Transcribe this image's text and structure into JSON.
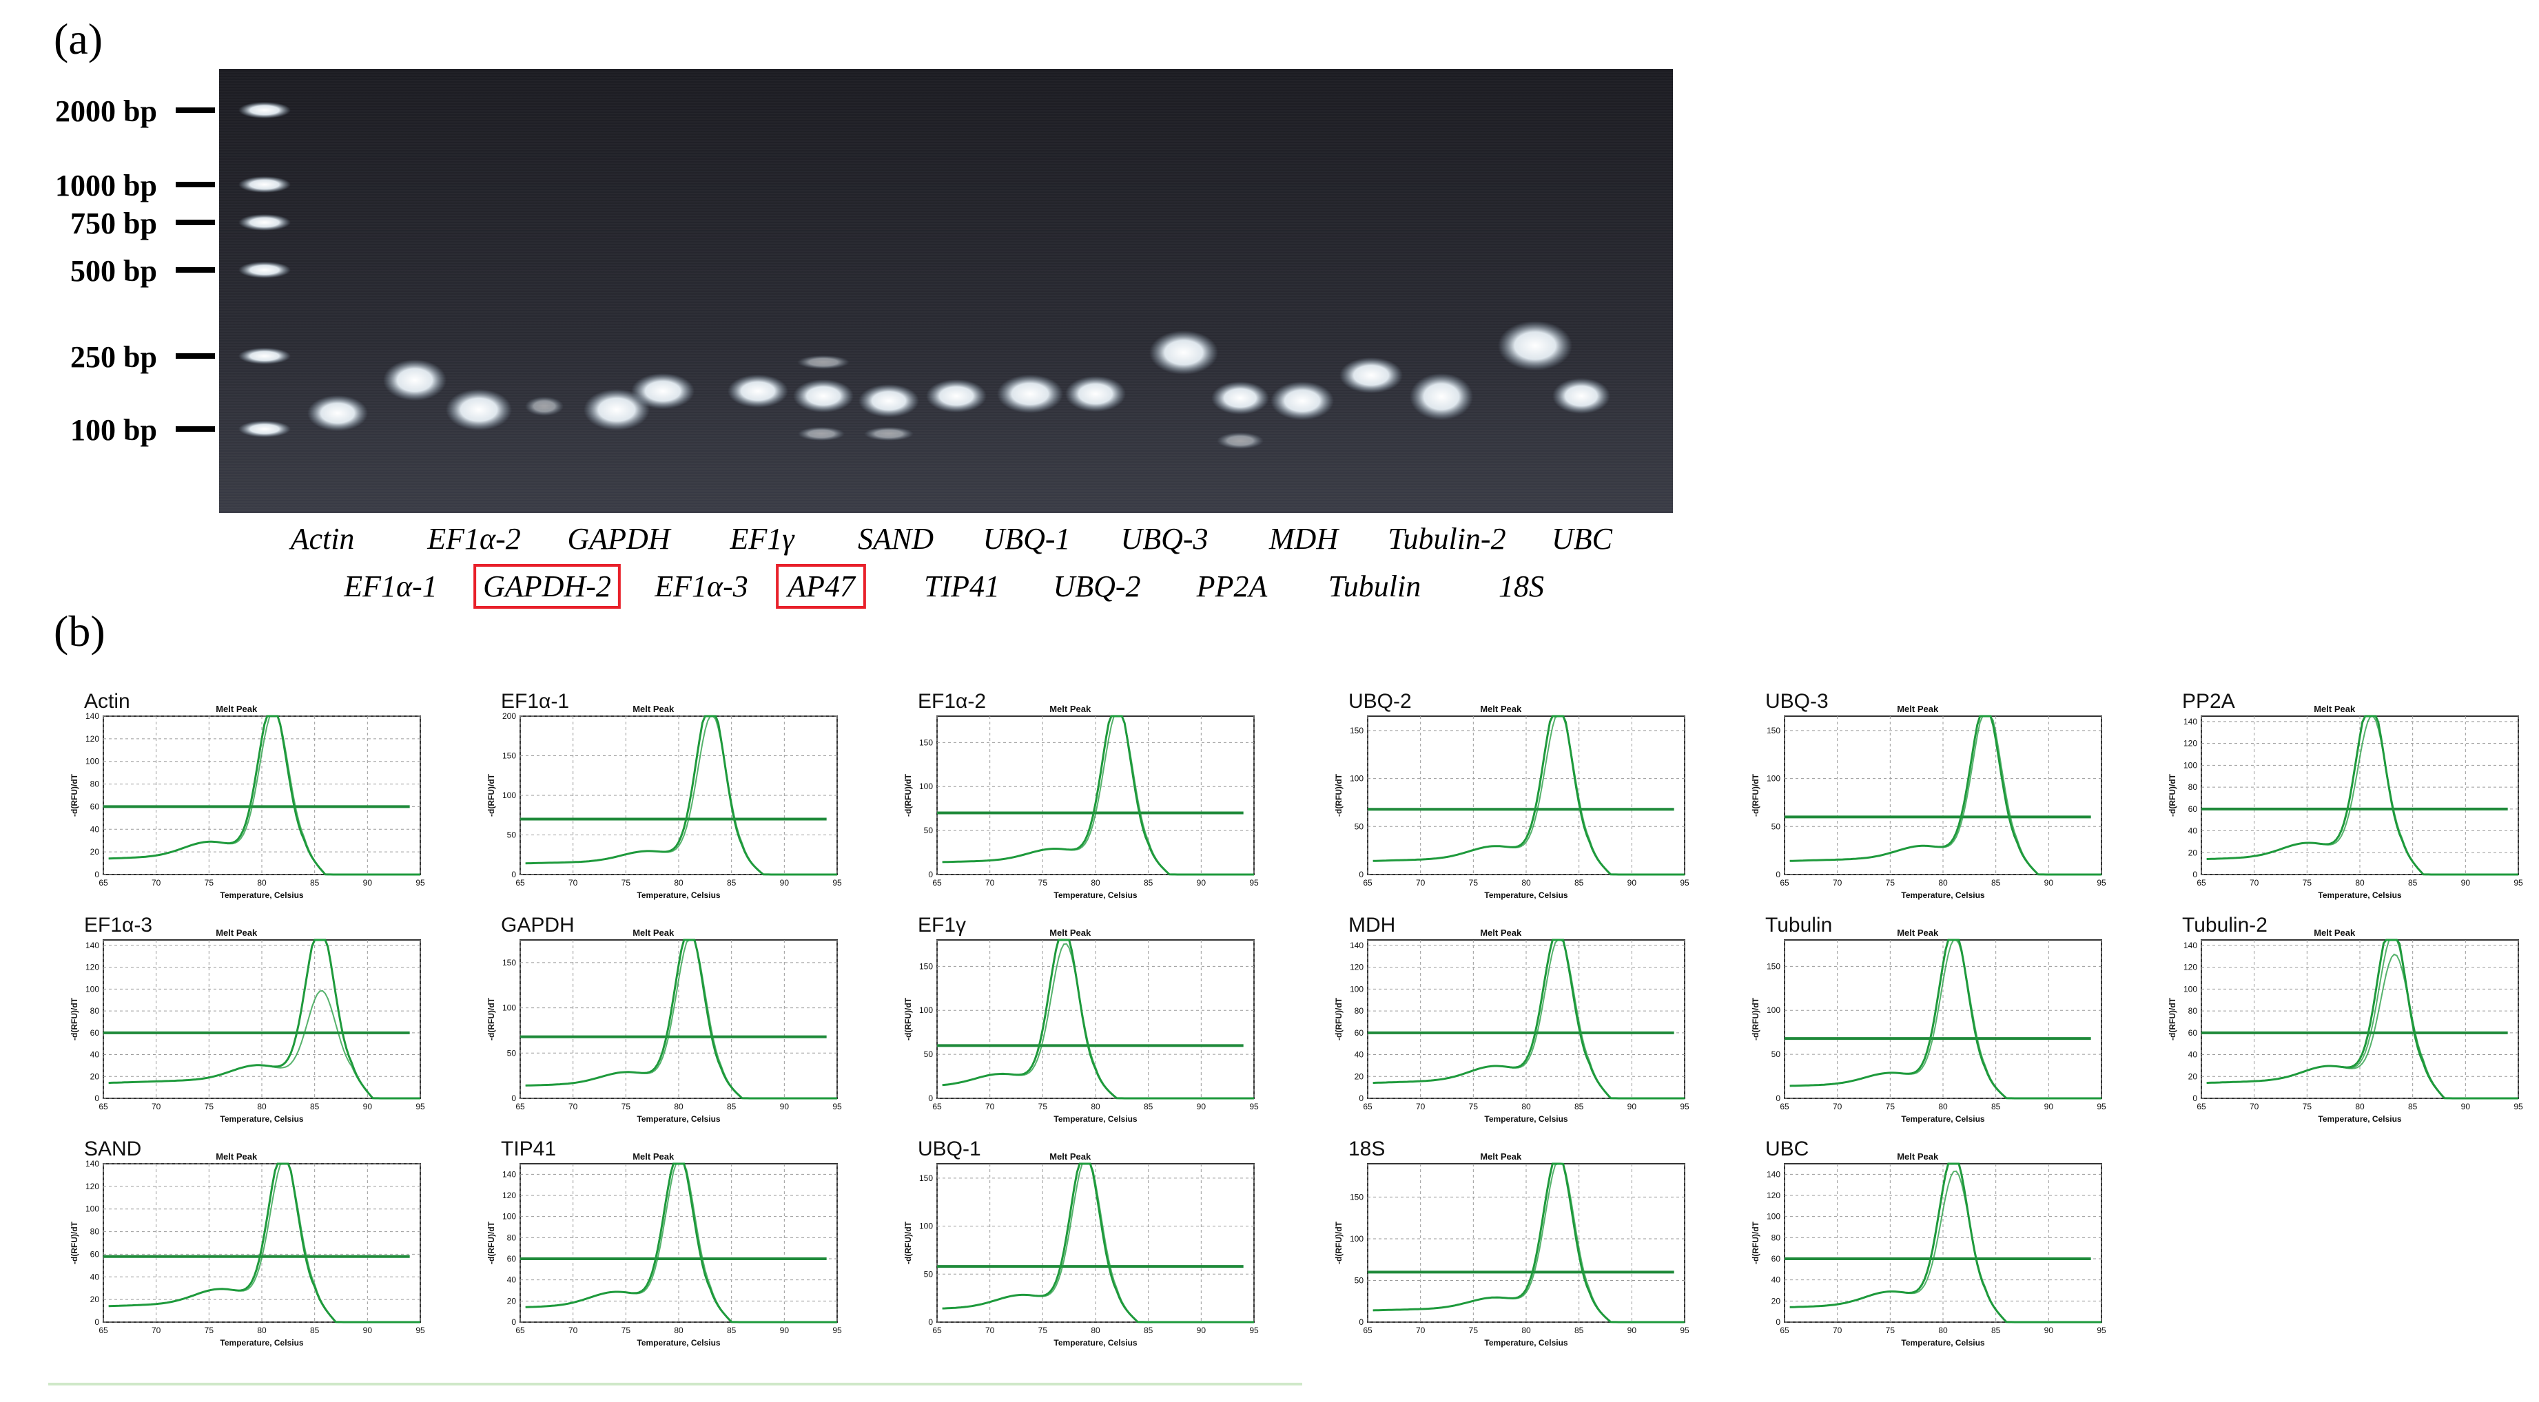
{
  "panel_a": {
    "label": "(a)",
    "ladder": [
      "2000 bp",
      "1000 bp",
      "750 bp",
      "500 bp",
      "250 bp",
      "100 bp"
    ],
    "lanes_row1": [
      "Actin",
      "EF1α-2",
      "GAPDH",
      "EF1γ",
      "SAND",
      "UBQ-1",
      "UBQ-3",
      "MDH",
      "Tubulin-2",
      "UBC"
    ],
    "lanes_row2": [
      "EF1α-1",
      "GAPDH-2",
      "EF1α-3",
      "AP47",
      "TIP41",
      "UBQ-2",
      "PP2A",
      "Tubulin",
      "18S"
    ],
    "highlight_color": "#e8202a"
  },
  "panel_b": {
    "label": "(b)",
    "plot_title": "Melt Peak",
    "xlabel": "Temperature, Celsius",
    "ylabel": "-d(RFU)/dT",
    "curve_color": "#1f9a3c",
    "threshold_color": "#1f8a3a"
  },
  "chart_data": [
    {
      "type": "line",
      "name": "Actin",
      "x_ticks": [
        65,
        70,
        75,
        80,
        85,
        90,
        95
      ],
      "y_ticks": [
        0,
        20,
        40,
        60,
        80,
        100,
        120,
        140
      ],
      "ylim": [
        0,
        140
      ],
      "peak_temp": 81,
      "peaks": [
        132,
        126
      ],
      "threshold": 60
    },
    {
      "type": "line",
      "name": "EF1α-1",
      "x_ticks": [
        65,
        70,
        75,
        80,
        85,
        90,
        95
      ],
      "y_ticks": [
        0,
        50,
        100,
        150,
        200
      ],
      "ylim": [
        0,
        200
      ],
      "peak_temp": 83,
      "peaks": [
        200,
        182
      ],
      "threshold": 70
    },
    {
      "type": "line",
      "name": "EF1α-2",
      "x_ticks": [
        65,
        70,
        75,
        80,
        85,
        90,
        95
      ],
      "y_ticks": [
        0,
        50,
        100,
        150
      ],
      "ylim": [
        0,
        180
      ],
      "peak_temp": 82,
      "peaks": [
        178,
        168
      ],
      "threshold": 70
    },
    {
      "type": "line",
      "name": "UBQ-2",
      "x_ticks": [
        65,
        70,
        75,
        80,
        85,
        90,
        95
      ],
      "y_ticks": [
        0,
        50,
        100,
        150
      ],
      "ylim": [
        0,
        165
      ],
      "peak_temp": 83,
      "peaks": [
        162,
        150
      ],
      "threshold": 68
    },
    {
      "type": "line",
      "name": "UBQ-3",
      "x_ticks": [
        65,
        70,
        75,
        80,
        85,
        90,
        95
      ],
      "y_ticks": [
        0,
        50,
        100,
        150
      ],
      "ylim": [
        0,
        165
      ],
      "peak_temp": 84,
      "peaks": [
        158,
        155
      ],
      "threshold": 60
    },
    {
      "type": "line",
      "name": "PP2A",
      "x_ticks": [
        65,
        70,
        75,
        80,
        85,
        90,
        95
      ],
      "y_ticks": [
        0,
        20,
        40,
        60,
        80,
        100,
        120,
        140
      ],
      "ylim": [
        0,
        145
      ],
      "peak_temp": 81,
      "peaks": [
        140,
        126
      ],
      "threshold": 60
    },
    {
      "type": "line",
      "name": "EF1α-3",
      "x_ticks": [
        65,
        70,
        75,
        80,
        85,
        90,
        95
      ],
      "y_ticks": [
        0,
        20,
        40,
        60,
        80,
        100,
        120,
        140
      ],
      "ylim": [
        0,
        145
      ],
      "peak_temp": 85.5,
      "peaks": [
        138,
        78
      ],
      "threshold": 60
    },
    {
      "type": "line",
      "name": "GAPDH",
      "x_ticks": [
        65,
        70,
        75,
        80,
        85,
        90,
        95
      ],
      "y_ticks": [
        0,
        50,
        100,
        150
      ],
      "ylim": [
        0,
        175
      ],
      "peak_temp": 81,
      "peaks": [
        168,
        160
      ],
      "threshold": 68
    },
    {
      "type": "line",
      "name": "EF1γ",
      "x_ticks": [
        65,
        70,
        75,
        80,
        85,
        90,
        95
      ],
      "y_ticks": [
        0,
        50,
        100,
        150
      ],
      "ylim": [
        0,
        180
      ],
      "peak_temp": 77,
      "peaks": [
        175,
        158
      ],
      "threshold": 60
    },
    {
      "type": "line",
      "name": "MDH",
      "x_ticks": [
        65,
        70,
        75,
        80,
        85,
        90,
        95
      ],
      "y_ticks": [
        0,
        20,
        40,
        60,
        80,
        100,
        120,
        140
      ],
      "ylim": [
        0,
        145
      ],
      "peak_temp": 83,
      "peaks": [
        134,
        128
      ],
      "threshold": 60
    },
    {
      "type": "line",
      "name": "Tubulin",
      "x_ticks": [
        65,
        70,
        75,
        80,
        85,
        90,
        95
      ],
      "y_ticks": [
        0,
        50,
        100,
        150
      ],
      "ylim": [
        0,
        180
      ],
      "peak_temp": 81,
      "peaks": [
        174,
        162
      ],
      "threshold": 68
    },
    {
      "type": "line",
      "name": "Tubulin-2",
      "x_ticks": [
        65,
        70,
        75,
        80,
        85,
        90,
        95
      ],
      "y_ticks": [
        0,
        20,
        40,
        60,
        80,
        100,
        120,
        140
      ],
      "ylim": [
        0,
        145
      ],
      "peak_temp": 83,
      "peaks": [
        142,
        130,
        112
      ],
      "threshold": 60
    },
    {
      "type": "line",
      "name": "SAND",
      "x_ticks": [
        65,
        70,
        75,
        80,
        85,
        90,
        95
      ],
      "y_ticks": [
        0,
        20,
        40,
        60,
        80,
        100,
        120,
        140
      ],
      "ylim": [
        0,
        140
      ],
      "peak_temp": 82,
      "peaks": [
        133,
        125
      ],
      "threshold": 58
    },
    {
      "type": "line",
      "name": "TIP41",
      "x_ticks": [
        65,
        70,
        75,
        80,
        85,
        90,
        95
      ],
      "y_ticks": [
        0,
        20,
        40,
        60,
        80,
        100,
        120,
        140
      ],
      "ylim": [
        0,
        150
      ],
      "peak_temp": 80,
      "peaks": [
        142,
        138
      ],
      "threshold": 60
    },
    {
      "type": "line",
      "name": "UBQ-1",
      "x_ticks": [
        65,
        70,
        75,
        80,
        85,
        90,
        95
      ],
      "y_ticks": [
        0,
        50,
        100,
        150
      ],
      "ylim": [
        0,
        165
      ],
      "peak_temp": 79,
      "peaks": [
        160,
        154
      ],
      "threshold": 58
    },
    {
      "type": "line",
      "name": "18S",
      "x_ticks": [
        65,
        70,
        75,
        80,
        85,
        90,
        95
      ],
      "y_ticks": [
        0,
        50,
        100,
        150
      ],
      "ylim": [
        0,
        190
      ],
      "peak_temp": 83,
      "peaks": [
        182,
        176
      ],
      "threshold": 60
    },
    {
      "type": "line",
      "name": "UBC",
      "x_ticks": [
        65,
        70,
        75,
        80,
        85,
        90,
        95
      ],
      "y_ticks": [
        0,
        20,
        40,
        60,
        80,
        100,
        120,
        140
      ],
      "ylim": [
        0,
        150
      ],
      "peak_temp": 81,
      "peaks": [
        141,
        124
      ],
      "threshold": 60
    }
  ]
}
